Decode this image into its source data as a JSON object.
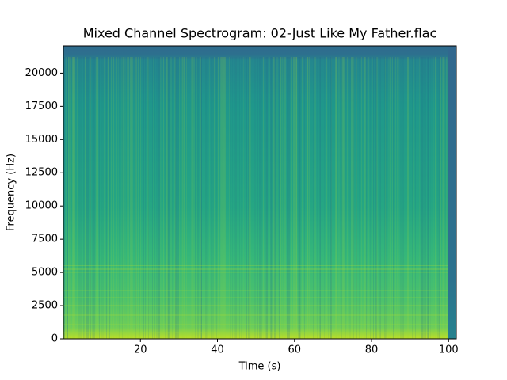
{
  "chart_data": {
    "type": "spectrogram",
    "title": "Mixed Channel Spectrogram: 02-Just Like My Father.flac",
    "x_label": "Time (s)",
    "y_label": "Frequency (Hz)",
    "xlim": [
      0,
      102
    ],
    "xticks": [
      20,
      40,
      60,
      80,
      100
    ],
    "ylim": [
      0,
      22050
    ],
    "yticks": [
      0,
      2500,
      5000,
      7500,
      10000,
      12500,
      15000,
      17500,
      20000
    ],
    "colormap": "viridis"
  }
}
